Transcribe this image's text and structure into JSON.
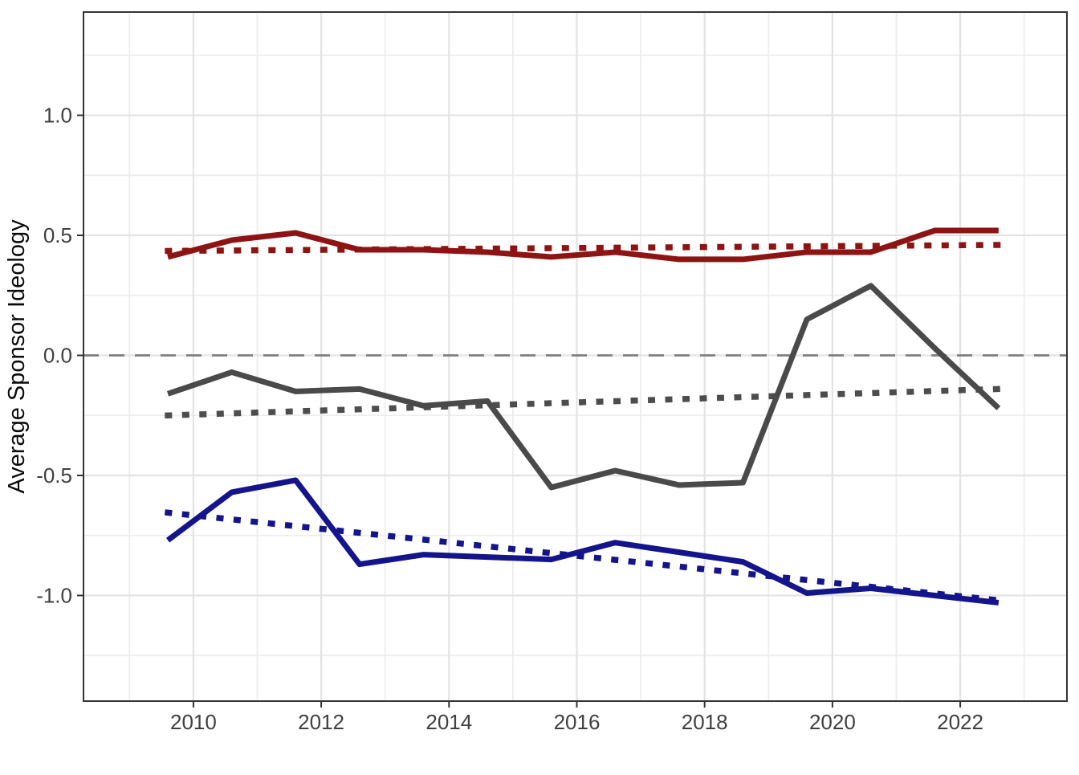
{
  "chart_data": {
    "type": "line",
    "title": "",
    "xlabel": "",
    "ylabel": "Average Sponsor Ideology",
    "x_range": [
      2008.28,
      2023.67
    ],
    "y_range": [
      -1.44,
      1.43
    ],
    "grid": true,
    "legend": false,
    "x": [
      2009.6,
      2010.6,
      2011.6,
      2012.6,
      2013.6,
      2014.6,
      2015.6,
      2016.6,
      2017.6,
      2018.6,
      2019.6,
      2020.6,
      2021.6,
      2022.6
    ],
    "series": [
      {
        "id": "red-trend-dotted",
        "color": "#8E1414",
        "style": "dotted",
        "x": [
          2009.6,
          2022.6
        ],
        "values": [
          0.435,
          0.46
        ]
      },
      {
        "id": "gray-trend-dotted",
        "color": "#4D4D4D",
        "style": "dotted",
        "x": [
          2009.6,
          2022.6
        ],
        "values": [
          -0.25,
          -0.14
        ]
      },
      {
        "id": "blue-trend-dotted",
        "color": "#14148C",
        "style": "dotted",
        "x": [
          2009.6,
          2022.6
        ],
        "values": [
          -0.655,
          -1.02
        ]
      },
      {
        "id": "red-solid",
        "color": "#8E1414",
        "style": "solid",
        "values": [
          0.41,
          0.48,
          0.51,
          0.44,
          0.44,
          0.43,
          0.41,
          0.43,
          0.4,
          0.4,
          0.43,
          0.43,
          0.52,
          0.52
        ]
      },
      {
        "id": "gray-solid",
        "color": "#4A4A4A",
        "style": "solid",
        "values": [
          -0.16,
          -0.07,
          -0.15,
          -0.14,
          -0.21,
          -0.19,
          -0.55,
          -0.48,
          -0.54,
          -0.53,
          0.15,
          0.29,
          0.03,
          -0.22
        ]
      },
      {
        "id": "blue-solid",
        "color": "#14148C",
        "style": "solid",
        "values": [
          -0.77,
          -0.57,
          -0.52,
          -0.87,
          -0.83,
          -0.84,
          -0.85,
          -0.78,
          -0.82,
          -0.86,
          -0.99,
          -0.97,
          -1.0,
          -1.03
        ]
      }
    ],
    "reference_line": {
      "y": 0,
      "style": "dashed",
      "color": "#7F7F7F"
    },
    "x_ticks": [
      2010,
      2012,
      2014,
      2016,
      2018,
      2020,
      2022
    ],
    "x_tick_labels": [
      "2010",
      "2012",
      "2014",
      "2016",
      "2018",
      "2020",
      "2022"
    ],
    "x_minor_ticks": [
      2009,
      2011,
      2013,
      2015,
      2017,
      2019,
      2021,
      2023
    ],
    "y_ticks": [
      1.0,
      0.5,
      0.0,
      -0.5,
      -1.0
    ],
    "y_tick_labels": [
      "1.0",
      "0.5",
      "0.0",
      "-0.5",
      "-1.0"
    ],
    "y_minor_ticks": [
      1.25,
      0.75,
      0.25,
      -0.25,
      -0.75,
      -1.25
    ]
  }
}
